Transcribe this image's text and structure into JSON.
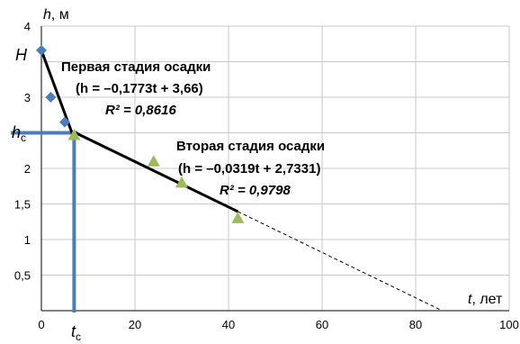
{
  "chart_data": {
    "type": "scatter",
    "xlabel": {
      "var": "t",
      "unit": ", лет"
    },
    "ylabel": {
      "var": "h",
      "unit": ", м"
    },
    "xlim": [
      0,
      100
    ],
    "ylim": [
      0,
      4
    ],
    "x_ticks": [
      0,
      20,
      40,
      60,
      80,
      100
    ],
    "y_ticks": [
      {
        "value": 0.5,
        "label": "0,5"
      },
      {
        "value": 1,
        "label": "1"
      },
      {
        "value": 1.5,
        "label": "1,5"
      },
      {
        "value": 2,
        "label": "2"
      },
      {
        "value": 2.5,
        "label": ""
      },
      {
        "value": 3,
        "label": "3"
      },
      {
        "value": 3.5,
        "label": ""
      },
      {
        "value": 4,
        "label": "4"
      }
    ],
    "grid": true,
    "series": [
      {
        "marker": "diamond",
        "color": "#4a7ebb",
        "points": [
          [
            0,
            3.66
          ],
          [
            2,
            3.0
          ],
          [
            5,
            2.65
          ]
        ]
      },
      {
        "marker": "triangle",
        "color": "#9bbb59",
        "points": [
          [
            7,
            2.47
          ],
          [
            24,
            2.1
          ],
          [
            30,
            1.8
          ],
          [
            42,
            1.3
          ]
        ]
      }
    ],
    "trendlines": [
      {
        "slope": -0.1773,
        "intercept": 3.66,
        "x_range": [
          0,
          7
        ],
        "style": "solid"
      },
      {
        "slope": -0.0319,
        "intercept": 2.7331,
        "x_range": [
          7,
          42
        ],
        "style": "solid"
      },
      {
        "slope": -0.0319,
        "intercept": 2.7331,
        "x_range": [
          42,
          85.7
        ],
        "style": "dashed"
      }
    ],
    "reference": {
      "hc_value": 2.5,
      "tc_value": 7,
      "color": "#4a7ebb",
      "H_label": "H",
      "hc_label": {
        "main": "h",
        "sub": "с"
      },
      "tc_label": {
        "main": "t",
        "sub": "с"
      }
    },
    "annotations": {
      "stage1": {
        "title": "Первая стадия осадки",
        "equation": "(h = –0,1773t + 3,66)",
        "r2": "R² = 0,8616"
      },
      "stage2": {
        "title": "Вторая стадия осадки",
        "equation": "(h = –0,0319t + 2,7331)",
        "r2": "R² = 0,9798"
      }
    }
  }
}
